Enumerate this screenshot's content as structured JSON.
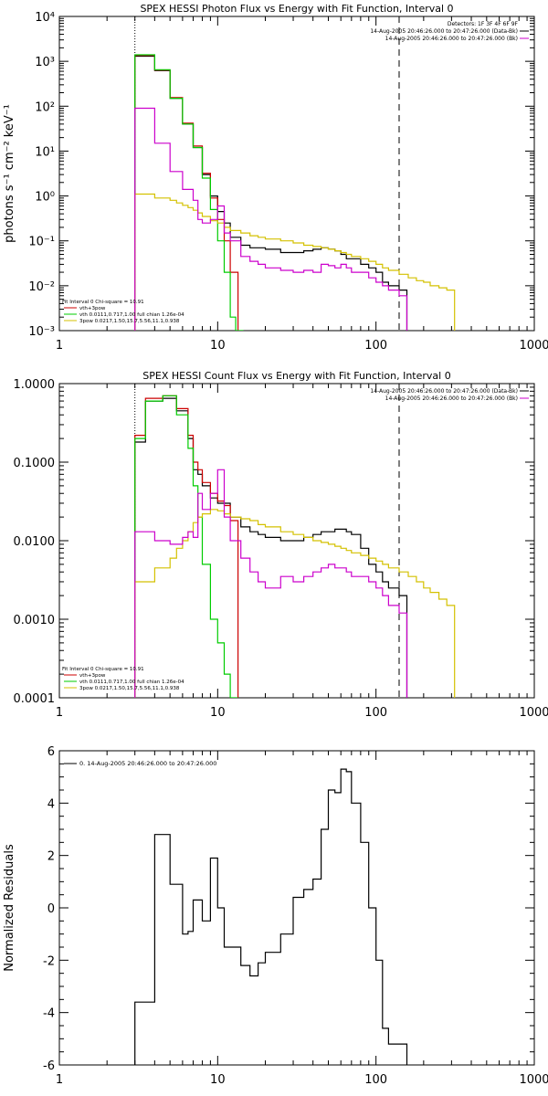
{
  "chart_data": [
    {
      "type": "line",
      "title": "SPEX HESSI Photon Flux vs Energy with Fit Function, Interval 0",
      "ylabel": "photons s⁻¹ cm⁻² keV⁻¹",
      "xlabel": "",
      "xscale": "log",
      "yscale": "log",
      "xlim": [
        1,
        1000
      ],
      "ylim": [
        0.001,
        10000
      ],
      "x_ticks": [
        1,
        10,
        100,
        1000
      ],
      "x_tick_labels": [
        "1",
        "10",
        "100",
        "1000"
      ],
      "y_ticks": [
        0.001,
        0.01,
        0.1,
        1,
        10,
        100,
        1000,
        10000
      ],
      "y_tick_labels": [
        "10⁻³",
        "10⁻²",
        "10⁻¹",
        "10⁰",
        "10¹",
        "10²",
        "10³",
        "10⁴"
      ],
      "legend_right": [
        "Detectors: 1F 3F 4F 6F 9F",
        "14-Aug-2005 20:46:26.000 to 20:47:26.000 (Data-Bk)",
        "14-Aug-2005 20:46:26.000 to 20:47:26.000 (Bk)"
      ],
      "legend_left": [
        "Fit Interval 0   Chi-square = 10.91",
        "vth+3pow",
        "vth 0.0111,0.717,1.00  full chian 1.26e-04",
        "3pow 0.0217,1.50,15.7,5.56,11.1,0.938"
      ],
      "vlines": [
        {
          "x": 3.0,
          "style": "dotted"
        },
        {
          "x": 140,
          "style": "dashed"
        }
      ],
      "series": [
        {
          "color": "#000000",
          "x": [
            3,
            3.5,
            4,
            4.5,
            5,
            5.5,
            6,
            6.5,
            7,
            7.5,
            8,
            9,
            10,
            11,
            12,
            14,
            16,
            18,
            20,
            25,
            30,
            35,
            40,
            45,
            50,
            55,
            60,
            65,
            70,
            80,
            90,
            100,
            110,
            120,
            140
          ],
          "y": [
            1300,
            1300,
            620,
            620,
            150,
            150,
            40,
            40,
            12,
            12,
            3.0,
            1.0,
            0.45,
            0.25,
            0.12,
            0.08,
            0.07,
            0.07,
            0.065,
            0.055,
            0.055,
            0.06,
            0.065,
            0.07,
            0.065,
            0.06,
            0.05,
            0.04,
            0.04,
            0.03,
            0.025,
            0.02,
            0.012,
            0.01,
            0.008
          ]
        },
        {
          "color": "#cc0000",
          "x": [
            3,
            3.5,
            4,
            4.5,
            5,
            5.5,
            6,
            6.5,
            7,
            7.5,
            8,
            9,
            10,
            11,
            12
          ],
          "y": [
            1350,
            1350,
            640,
            640,
            155,
            155,
            42,
            42,
            13,
            13,
            3.2,
            0.9,
            0.3,
            0.1,
            0.02
          ]
        },
        {
          "color": "#00cc00",
          "x": [
            3,
            3.5,
            4,
            4.5,
            5,
            5.5,
            6,
            6.5,
            7,
            7.5,
            8,
            9,
            10,
            11,
            12,
            13
          ],
          "y": [
            1400,
            1400,
            650,
            650,
            150,
            150,
            40,
            40,
            12,
            12,
            2.5,
            0.5,
            0.1,
            0.02,
            0.002,
            0.001
          ]
        },
        {
          "color": "#d4c100",
          "x": [
            3,
            3.5,
            4,
            4.5,
            5,
            5.5,
            6,
            6.5,
            7,
            7.5,
            8,
            9,
            10,
            11,
            12,
            14,
            16,
            18,
            20,
            25,
            30,
            35,
            40,
            45,
            50,
            55,
            60,
            65,
            70,
            80,
            90,
            100,
            110,
            120,
            140,
            160,
            180,
            200,
            220,
            250,
            280
          ],
          "y": [
            1.1,
            1.1,
            0.9,
            0.9,
            0.8,
            0.7,
            0.62,
            0.55,
            0.48,
            0.42,
            0.35,
            0.28,
            0.25,
            0.2,
            0.17,
            0.15,
            0.13,
            0.12,
            0.11,
            0.1,
            0.09,
            0.08,
            0.075,
            0.07,
            0.065,
            0.06,
            0.055,
            0.05,
            0.045,
            0.04,
            0.035,
            0.03,
            0.025,
            0.022,
            0.018,
            0.015,
            0.013,
            0.012,
            0.01,
            0.009,
            0.008
          ]
        },
        {
          "color": "#cc00cc",
          "x": [
            3,
            3.5,
            4,
            4.5,
            5,
            5.5,
            6,
            6.5,
            7,
            7.5,
            8,
            9,
            10,
            11,
            12,
            14,
            16,
            18,
            20,
            25,
            30,
            35,
            40,
            45,
            50,
            55,
            60,
            65,
            70,
            80,
            90,
            100,
            110,
            120,
            140
          ],
          "y": [
            90,
            90,
            15,
            15,
            3.5,
            3.5,
            1.4,
            1.4,
            0.8,
            0.3,
            0.25,
            0.3,
            0.6,
            0.15,
            0.1,
            0.045,
            0.035,
            0.03,
            0.025,
            0.022,
            0.02,
            0.022,
            0.02,
            0.03,
            0.028,
            0.025,
            0.03,
            0.025,
            0.02,
            0.02,
            0.015,
            0.012,
            0.01,
            0.008,
            0.006
          ]
        }
      ]
    },
    {
      "type": "line",
      "title": "SPEX HESSI Count Flux vs Energy with Fit Function, Interval 0",
      "ylabel": "",
      "xlabel": "",
      "xscale": "log",
      "yscale": "log",
      "xlim": [
        1,
        1000
      ],
      "ylim": [
        0.0001,
        1.0
      ],
      "x_ticks": [
        1,
        10,
        100,
        1000
      ],
      "x_tick_labels": [
        "1",
        "10",
        "100",
        "1000"
      ],
      "y_ticks": [
        0.0001,
        0.001,
        0.01,
        0.1,
        1.0
      ],
      "y_tick_labels": [
        "0.0001",
        "0.0010",
        "0.0100",
        "0.1000",
        "1.0000"
      ],
      "legend_right": [
        "14-Aug-2005 20:46:26.000 to 20:47:26.000 (Data-Bk)",
        "14-Aug-2005 20:46:26.000 to 20:47:26.000 (Bk)"
      ],
      "legend_left": [
        "Fit Interval 0   Chi-square = 10.91",
        "vth+3pow",
        "vth 0.0111,0.717,1.00  full chian 1.26e-04",
        "3pow 0.0217,1.50,15.7,5.56,11.1,0.938"
      ],
      "vlines": [
        {
          "x": 3.0,
          "style": "dotted"
        },
        {
          "x": 140,
          "style": "dashed"
        }
      ],
      "series": [
        {
          "color": "#000000",
          "x": [
            3,
            3.5,
            4,
            4.5,
            5,
            5.5,
            6,
            6.5,
            7,
            7.5,
            8,
            9,
            10,
            11,
            12,
            14,
            16,
            18,
            20,
            25,
            30,
            35,
            40,
            45,
            50,
            55,
            60,
            65,
            70,
            80,
            90,
            100,
            110,
            120,
            140
          ],
          "y": [
            0.18,
            0.6,
            0.6,
            0.65,
            0.65,
            0.45,
            0.45,
            0.2,
            0.08,
            0.07,
            0.05,
            0.035,
            0.03,
            0.03,
            0.02,
            0.015,
            0.013,
            0.012,
            0.011,
            0.01,
            0.01,
            0.011,
            0.012,
            0.013,
            0.013,
            0.014,
            0.014,
            0.013,
            0.012,
            0.008,
            0.005,
            0.004,
            0.003,
            0.0025,
            0.002
          ]
        },
        {
          "color": "#cc0000",
          "x": [
            3,
            3.5,
            4,
            4.5,
            5,
            5.5,
            6,
            6.5,
            7,
            7.5,
            8,
            9,
            10,
            11,
            12
          ],
          "y": [
            0.22,
            0.65,
            0.65,
            0.7,
            0.7,
            0.48,
            0.48,
            0.22,
            0.1,
            0.08,
            0.055,
            0.04,
            0.032,
            0.028,
            0.018
          ]
        },
        {
          "color": "#00cc00",
          "x": [
            3,
            3.5,
            4,
            4.5,
            5,
            5.5,
            6,
            6.5,
            7,
            7.5,
            8,
            9,
            10,
            11,
            12
          ],
          "y": [
            0.2,
            0.6,
            0.6,
            0.7,
            0.7,
            0.4,
            0.4,
            0.15,
            0.05,
            0.02,
            0.005,
            0.001,
            0.0005,
            0.0002,
            0.0001
          ]
        },
        {
          "color": "#d4c100",
          "x": [
            3,
            3.5,
            4,
            4.5,
            5,
            5.5,
            6,
            6.5,
            7,
            7.5,
            8,
            9,
            10,
            11,
            12,
            14,
            16,
            18,
            20,
            25,
            30,
            35,
            40,
            45,
            50,
            55,
            60,
            65,
            70,
            80,
            90,
            100,
            110,
            120,
            140,
            160,
            180,
            200,
            220,
            250,
            280
          ],
          "y": [
            0.003,
            0.003,
            0.0045,
            0.0045,
            0.006,
            0.008,
            0.01,
            0.013,
            0.017,
            0.02,
            0.022,
            0.025,
            0.024,
            0.022,
            0.02,
            0.019,
            0.018,
            0.016,
            0.015,
            0.013,
            0.012,
            0.011,
            0.01,
            0.0095,
            0.009,
            0.0085,
            0.008,
            0.0075,
            0.007,
            0.0065,
            0.006,
            0.0055,
            0.005,
            0.0045,
            0.004,
            0.0035,
            0.003,
            0.0025,
            0.0022,
            0.0018,
            0.0015
          ]
        },
        {
          "color": "#cc00cc",
          "x": [
            3,
            3.5,
            4,
            4.5,
            5,
            5.5,
            6,
            6.5,
            7,
            7.5,
            8,
            9,
            10,
            11,
            12,
            14,
            16,
            18,
            20,
            25,
            30,
            35,
            40,
            45,
            50,
            55,
            60,
            65,
            70,
            80,
            90,
            100,
            110,
            120,
            140
          ],
          "y": [
            0.013,
            0.013,
            0.01,
            0.01,
            0.009,
            0.009,
            0.011,
            0.013,
            0.011,
            0.04,
            0.025,
            0.04,
            0.08,
            0.02,
            0.01,
            0.006,
            0.004,
            0.003,
            0.0025,
            0.0035,
            0.003,
            0.0035,
            0.004,
            0.0045,
            0.005,
            0.0045,
            0.0045,
            0.004,
            0.0035,
            0.0035,
            0.003,
            0.0025,
            0.002,
            0.0015,
            0.0012
          ]
        }
      ]
    },
    {
      "type": "line",
      "title": "",
      "ylabel": "Normalized Residuals",
      "xlabel": "",
      "xscale": "log",
      "yscale": "linear",
      "xlim": [
        1,
        1000
      ],
      "ylim": [
        -6,
        6
      ],
      "x_ticks": [
        1,
        10,
        100,
        1000
      ],
      "x_tick_labels": [
        "1",
        "10",
        "100",
        "1000"
      ],
      "y_ticks": [
        -6,
        -4,
        -2,
        0,
        2,
        4,
        6
      ],
      "y_tick_labels": [
        "-6",
        "-4",
        "-2",
        "0",
        "2",
        "4",
        "6"
      ],
      "legend_left": [
        "0. 14-Aug-2005 20:46:26.000 to 20:47:26.000"
      ],
      "series": [
        {
          "color": "#000000",
          "x": [
            3,
            3.5,
            4,
            4.5,
            5,
            5.5,
            6,
            6.5,
            7,
            7.5,
            8,
            9,
            10,
            11,
            12,
            14,
            16,
            18,
            20,
            25,
            30,
            35,
            40,
            45,
            50,
            55,
            60,
            65,
            70,
            80,
            90,
            100,
            110,
            120,
            140
          ],
          "y": [
            -3.6,
            -3.6,
            2.8,
            2.8,
            0.9,
            0.9,
            -1.0,
            -0.9,
            0.3,
            0.3,
            -0.5,
            1.9,
            0.0,
            -1.5,
            -1.5,
            -2.2,
            -2.6,
            -2.1,
            -1.7,
            -1.0,
            0.4,
            0.7,
            1.1,
            3.0,
            4.5,
            4.4,
            5.3,
            5.2,
            4.0,
            2.5,
            0.0,
            -2.0,
            -4.6,
            -5.2,
            -5.2
          ]
        }
      ]
    }
  ]
}
